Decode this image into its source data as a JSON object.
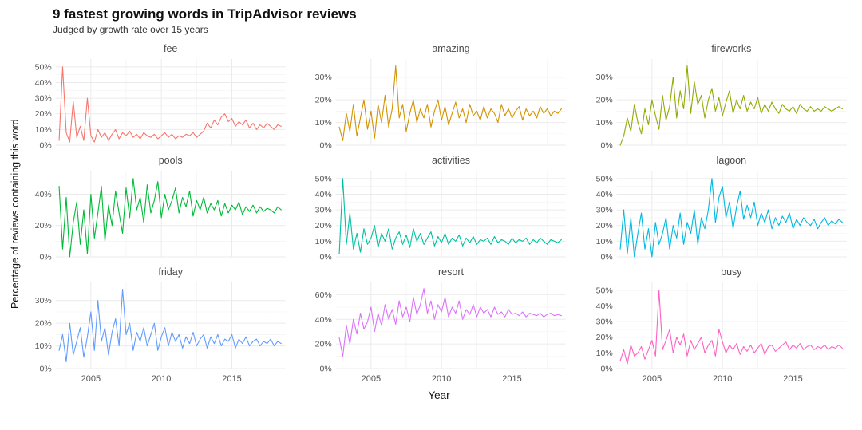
{
  "header": {
    "title": "9 fastest growing words in TripAdvisor reviews",
    "subtitle": "Judged by growth rate over 15 years"
  },
  "chart_data": {
    "type": "line",
    "title": "9 fastest growing words in TripAdvisor reviews",
    "subtitle": "Judged by growth rate over 15 years",
    "xlabel": "Year",
    "ylabel": "Percentage of reviews containing this word",
    "x_range": [
      2002.5,
      2018.8
    ],
    "x_ticks": [
      2005,
      2010,
      2015
    ],
    "grid": "faint gray major+minor gridlines on white, no axis lines",
    "legend": "none (one facet per word)",
    "unit": "percent of reviews containing the word, monthly-style noisy series",
    "facets": [
      {
        "title": "fee",
        "color": "#F8766D",
        "ylim": [
          0,
          55
        ],
        "yticks": [
          0,
          10,
          20,
          30,
          40,
          50
        ],
        "x_start": 2002.75,
        "x_step": 0.25,
        "values": [
          3,
          50,
          8,
          2,
          28,
          5,
          12,
          3,
          30,
          6,
          2,
          10,
          5,
          8,
          3,
          7,
          10,
          4,
          8,
          6,
          9,
          5,
          7,
          4,
          8,
          6,
          5,
          7,
          4,
          6,
          8,
          5,
          7,
          4,
          6,
          5,
          7,
          6,
          8,
          5,
          7,
          9,
          14,
          11,
          16,
          13,
          18,
          20,
          15,
          17,
          12,
          15,
          13,
          16,
          11,
          14,
          10,
          13,
          11,
          14,
          12,
          10,
          13,
          12
        ]
      },
      {
        "title": "amazing",
        "color": "#D39200",
        "ylim": [
          0,
          38
        ],
        "yticks": [
          0,
          10,
          20,
          30
        ],
        "x_start": 2002.75,
        "x_step": 0.25,
        "values": [
          8,
          2,
          14,
          6,
          18,
          4,
          12,
          20,
          7,
          15,
          3,
          18,
          10,
          22,
          8,
          16,
          35,
          12,
          18,
          6,
          14,
          20,
          10,
          16,
          12,
          18,
          8,
          15,
          20,
          11,
          17,
          9,
          14,
          19,
          12,
          16,
          10,
          18,
          13,
          15,
          11,
          17,
          12,
          16,
          14,
          10,
          18,
          13,
          16,
          12,
          15,
          17,
          11,
          16,
          13,
          15,
          12,
          17,
          14,
          16,
          13,
          15,
          14,
          16
        ]
      },
      {
        "title": "fireworks",
        "color": "#93AA00",
        "ylim": [
          0,
          38
        ],
        "yticks": [
          0,
          10,
          20,
          30
        ],
        "x_start": 2002.75,
        "x_step": 0.25,
        "values": [
          0,
          4,
          12,
          6,
          18,
          10,
          5,
          16,
          9,
          20,
          13,
          7,
          22,
          11,
          17,
          30,
          12,
          24,
          16,
          35,
          14,
          28,
          18,
          22,
          12,
          20,
          25,
          15,
          21,
          13,
          19,
          24,
          14,
          20,
          16,
          22,
          15,
          19,
          16,
          21,
          14,
          18,
          15,
          19,
          16,
          14,
          18,
          16,
          15,
          17,
          14,
          18,
          16,
          15,
          17,
          15,
          16,
          15,
          17,
          16,
          15,
          16,
          17,
          16
        ]
      },
      {
        "title": "pools",
        "color": "#00BA38",
        "ylim": [
          0,
          55
        ],
        "yticks": [
          0,
          20,
          40
        ],
        "x_start": 2002.75,
        "x_step": 0.25,
        "values": [
          45,
          5,
          38,
          0,
          22,
          35,
          8,
          30,
          2,
          40,
          12,
          28,
          45,
          10,
          33,
          20,
          42,
          28,
          15,
          44,
          25,
          50,
          30,
          38,
          22,
          46,
          28,
          36,
          48,
          25,
          40,
          30,
          36,
          44,
          28,
          38,
          32,
          42,
          26,
          36,
          30,
          38,
          28,
          34,
          30,
          36,
          26,
          34,
          28,
          33,
          30,
          35,
          27,
          32,
          29,
          33,
          28,
          32,
          29,
          31,
          30,
          28,
          32,
          30
        ]
      },
      {
        "title": "activities",
        "color": "#00C19F",
        "ylim": [
          0,
          55
        ],
        "yticks": [
          0,
          10,
          20,
          30,
          40,
          50
        ],
        "x_start": 2002.75,
        "x_step": 0.25,
        "values": [
          2,
          50,
          8,
          28,
          5,
          15,
          3,
          18,
          8,
          12,
          20,
          6,
          15,
          10,
          18,
          5,
          12,
          16,
          8,
          14,
          6,
          18,
          10,
          15,
          8,
          12,
          16,
          7,
          13,
          9,
          15,
          8,
          12,
          10,
          14,
          7,
          12,
          9,
          13,
          8,
          11,
          10,
          12,
          8,
          13,
          9,
          11,
          10,
          8,
          12,
          9,
          11,
          10,
          12,
          8,
          11,
          9,
          12,
          10,
          8,
          11,
          10,
          9,
          11
        ]
      },
      {
        "title": "lagoon",
        "color": "#00B9E3",
        "ylim": [
          0,
          55
        ],
        "yticks": [
          0,
          10,
          20,
          30,
          40,
          50
        ],
        "x_start": 2002.75,
        "x_step": 0.25,
        "values": [
          5,
          30,
          2,
          25,
          0,
          15,
          28,
          5,
          18,
          0,
          22,
          8,
          15,
          25,
          5,
          20,
          12,
          28,
          8,
          22,
          15,
          30,
          8,
          25,
          18,
          30,
          50,
          22,
          38,
          45,
          25,
          35,
          18,
          32,
          42,
          24,
          33,
          25,
          35,
          20,
          28,
          22,
          30,
          18,
          25,
          20,
          26,
          22,
          28,
          18,
          24,
          20,
          25,
          22,
          20,
          24,
          18,
          22,
          25,
          20,
          23,
          21,
          24,
          22
        ]
      },
      {
        "title": "friday",
        "color": "#619CFF",
        "ylim": [
          0,
          38
        ],
        "yticks": [
          0,
          10,
          20,
          30
        ],
        "x_start": 2002.75,
        "x_step": 0.25,
        "values": [
          8,
          15,
          3,
          20,
          6,
          12,
          18,
          5,
          14,
          25,
          8,
          30,
          12,
          18,
          6,
          16,
          22,
          10,
          35,
          15,
          20,
          8,
          16,
          12,
          18,
          10,
          15,
          20,
          8,
          14,
          18,
          10,
          16,
          12,
          15,
          9,
          14,
          11,
          16,
          10,
          13,
          15,
          9,
          14,
          11,
          15,
          10,
          13,
          12,
          15,
          9,
          13,
          11,
          14,
          10,
          12,
          13,
          10,
          12,
          11,
          13,
          10,
          12,
          11
        ]
      },
      {
        "title": "resort",
        "color": "#DB72FB",
        "ylim": [
          0,
          70
        ],
        "yticks": [
          0,
          20,
          40,
          60
        ],
        "x_start": 2002.75,
        "x_step": 0.25,
        "values": [
          25,
          10,
          35,
          20,
          40,
          28,
          45,
          32,
          38,
          50,
          30,
          45,
          35,
          52,
          40,
          48,
          36,
          55,
          42,
          50,
          38,
          58,
          44,
          52,
          65,
          45,
          55,
          40,
          52,
          46,
          58,
          42,
          50,
          45,
          55,
          40,
          48,
          44,
          52,
          42,
          50,
          45,
          48,
          42,
          50,
          44,
          46,
          42,
          48,
          44,
          45,
          43,
          46,
          42,
          45,
          44,
          43,
          45,
          42,
          44,
          45,
          43,
          44,
          43
        ]
      },
      {
        "title": "busy",
        "color": "#FF61C3",
        "ylim": [
          0,
          55
        ],
        "yticks": [
          0,
          10,
          20,
          30,
          40,
          50
        ],
        "x_start": 2002.75,
        "x_step": 0.25,
        "values": [
          5,
          12,
          3,
          15,
          8,
          10,
          14,
          6,
          12,
          18,
          8,
          50,
          12,
          18,
          25,
          10,
          20,
          15,
          22,
          8,
          18,
          12,
          16,
          20,
          10,
          15,
          18,
          8,
          25,
          17,
          10,
          15,
          12,
          16,
          9,
          14,
          11,
          15,
          10,
          13,
          16,
          9,
          14,
          15,
          11,
          13,
          15,
          17,
          12,
          15,
          13,
          16,
          12,
          14,
          15,
          12,
          14,
          13,
          15,
          12,
          14,
          13,
          15,
          13
        ]
      }
    ]
  }
}
